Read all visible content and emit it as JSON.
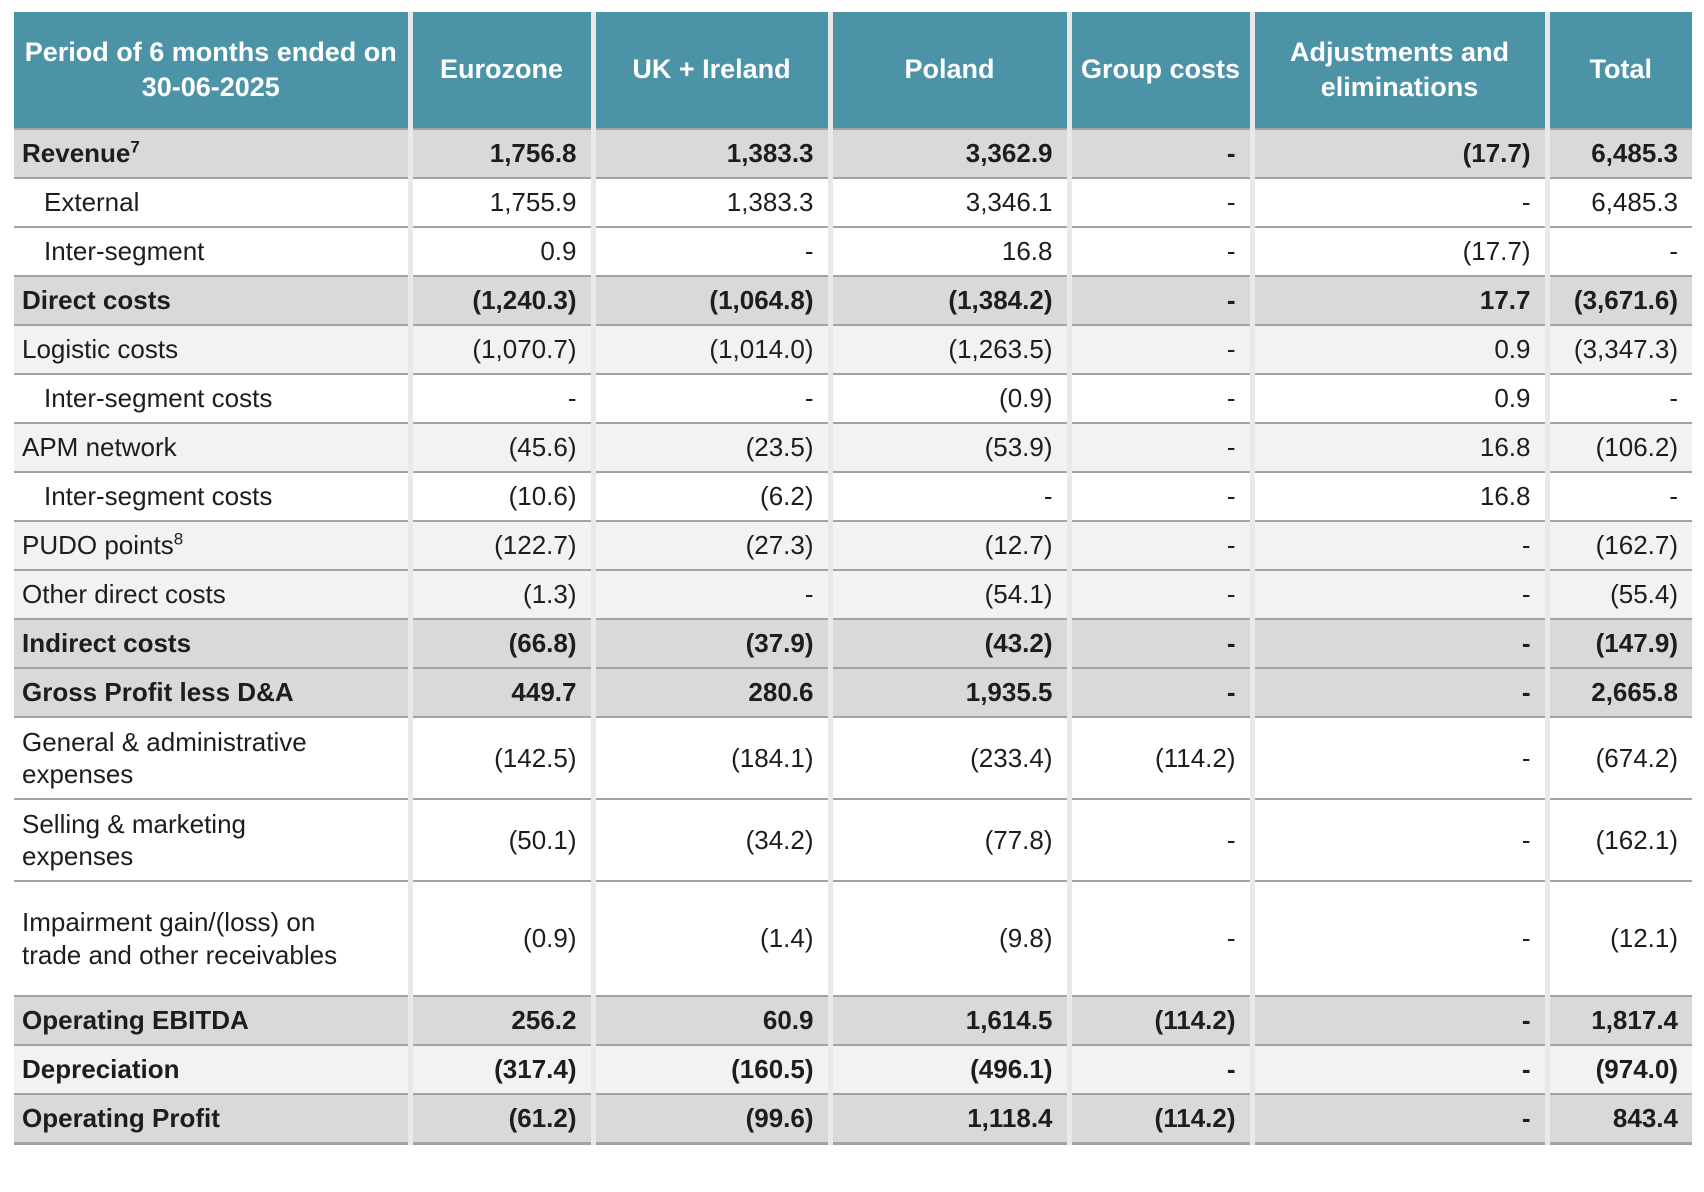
{
  "colors": {
    "header_bg": "#4c93a7",
    "header_text": "#ffffff",
    "total_row_bg": "#d9d9d9",
    "alt_row_bg": "#f2f2f2",
    "row_bg": "#ffffff",
    "grid_horizontal": "#a3a3a3",
    "grid_vertical": "#e9e9e9",
    "text": "#1d1d1d"
  },
  "table": {
    "header": {
      "period": "Period of 6 months ended on 30-06-2025",
      "columns": [
        "Eurozone",
        "UK + Ireland",
        "Poland",
        "Group costs",
        "Adjustments and eliminations",
        "Total"
      ]
    },
    "rows": [
      {
        "label": "Revenue",
        "sup": "7",
        "values": [
          "1,756.8",
          "1,383.3",
          "3,362.9",
          "-",
          "(17.7)",
          "6,485.3"
        ]
      },
      {
        "label": "External",
        "values": [
          "1,755.9",
          "1,383.3",
          "3,346.1",
          "-",
          "-",
          "6,485.3"
        ]
      },
      {
        "label": "Inter-segment",
        "values": [
          "0.9",
          "-",
          "16.8",
          "-",
          "(17.7)",
          "-"
        ]
      },
      {
        "label": "Direct costs",
        "values": [
          "(1,240.3)",
          "(1,064.8)",
          "(1,384.2)",
          "-",
          "17.7",
          "(3,671.6)"
        ]
      },
      {
        "label": "Logistic costs",
        "values": [
          "(1,070.7)",
          "(1,014.0)",
          "(1,263.5)",
          "-",
          "0.9",
          "(3,347.3)"
        ]
      },
      {
        "label": "Inter-segment costs",
        "values": [
          "-",
          "-",
          "(0.9)",
          "-",
          "0.9",
          "-"
        ]
      },
      {
        "label": "APM network",
        "values": [
          "(45.6)",
          "(23.5)",
          "(53.9)",
          "-",
          "16.8",
          "(106.2)"
        ]
      },
      {
        "label": "Inter-segment costs",
        "values": [
          "(10.6)",
          "(6.2)",
          "-",
          "-",
          "16.8",
          "-"
        ]
      },
      {
        "label": "PUDO points",
        "sup": "8",
        "values": [
          "(122.7)",
          "(27.3)",
          "(12.7)",
          "-",
          "-",
          "(162.7)"
        ]
      },
      {
        "label": "Other direct costs",
        "values": [
          "(1.3)",
          "-",
          "(54.1)",
          "-",
          "-",
          "(55.4)"
        ]
      },
      {
        "label": "Indirect costs",
        "values": [
          "(66.8)",
          "(37.9)",
          "(43.2)",
          "-",
          "-",
          "(147.9)"
        ]
      },
      {
        "label": "Gross Profit less D&A",
        "values": [
          "449.7",
          "280.6",
          "1,935.5",
          "-",
          "-",
          "2,665.8"
        ]
      },
      {
        "label": "General & administrative expenses",
        "values": [
          "(142.5)",
          "(184.1)",
          "(233.4)",
          "(114.2)",
          "-",
          "(674.2)"
        ]
      },
      {
        "label": "Selling & marketing expenses",
        "values": [
          "(50.1)",
          "(34.2)",
          "(77.8)",
          "-",
          "-",
          "(162.1)"
        ]
      },
      {
        "label": "Impairment gain/(loss) on trade and other receivables",
        "values": [
          "(0.9)",
          "(1.4)",
          "(9.8)",
          "-",
          "-",
          "(12.1)"
        ]
      },
      {
        "label": "Operating EBITDA",
        "values": [
          "256.2",
          "60.9",
          "1,614.5",
          "(114.2)",
          "-",
          "1,817.4"
        ]
      },
      {
        "label": "Depreciation",
        "values": [
          "(317.4)",
          "(160.5)",
          "(496.1)",
          "-",
          "-",
          "(974.0)"
        ]
      },
      {
        "label": "Operating Profit",
        "values": [
          "(61.2)",
          "(99.6)",
          "1,118.4",
          "(114.2)",
          "-",
          "843.4"
        ]
      }
    ]
  }
}
